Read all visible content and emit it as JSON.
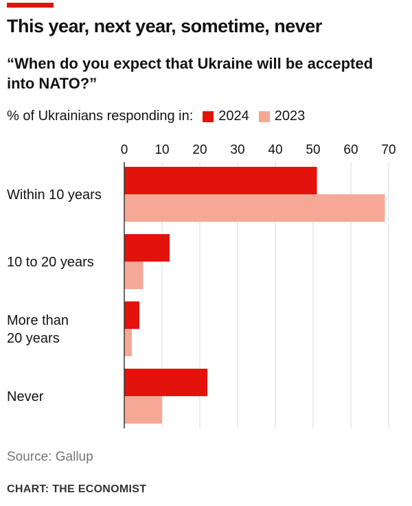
{
  "header": {
    "title": "This year, next year, sometime, never",
    "subtitle": "“When do you expect that Ukraine will be accepted into NATO?”"
  },
  "legend": {
    "prefix": "% of Ukrainians responding in:",
    "items": [
      {
        "label": "2024",
        "color": "#e3120b"
      },
      {
        "label": "2023",
        "color": "#f6a896"
      }
    ]
  },
  "footer": {
    "source": "Source: Gallup",
    "credit": "CHART: THE ECONOMIST"
  },
  "chart_data": {
    "type": "bar",
    "orientation": "horizontal",
    "categories": [
      [
        "Within 10 years"
      ],
      [
        "10 to 20 years"
      ],
      [
        "More than",
        "20 years"
      ],
      [
        "Never"
      ]
    ],
    "series": [
      {
        "name": "2024",
        "values": [
          51,
          12,
          4,
          22
        ],
        "color": "#e3120b"
      },
      {
        "name": "2023",
        "values": [
          69,
          5,
          2,
          10
        ],
        "color": "#f6a896"
      }
    ],
    "xlim": [
      0,
      70
    ],
    "ticks": [
      0,
      10,
      20,
      30,
      40,
      50,
      60,
      70
    ],
    "axis_position": "top",
    "grid": true
  }
}
